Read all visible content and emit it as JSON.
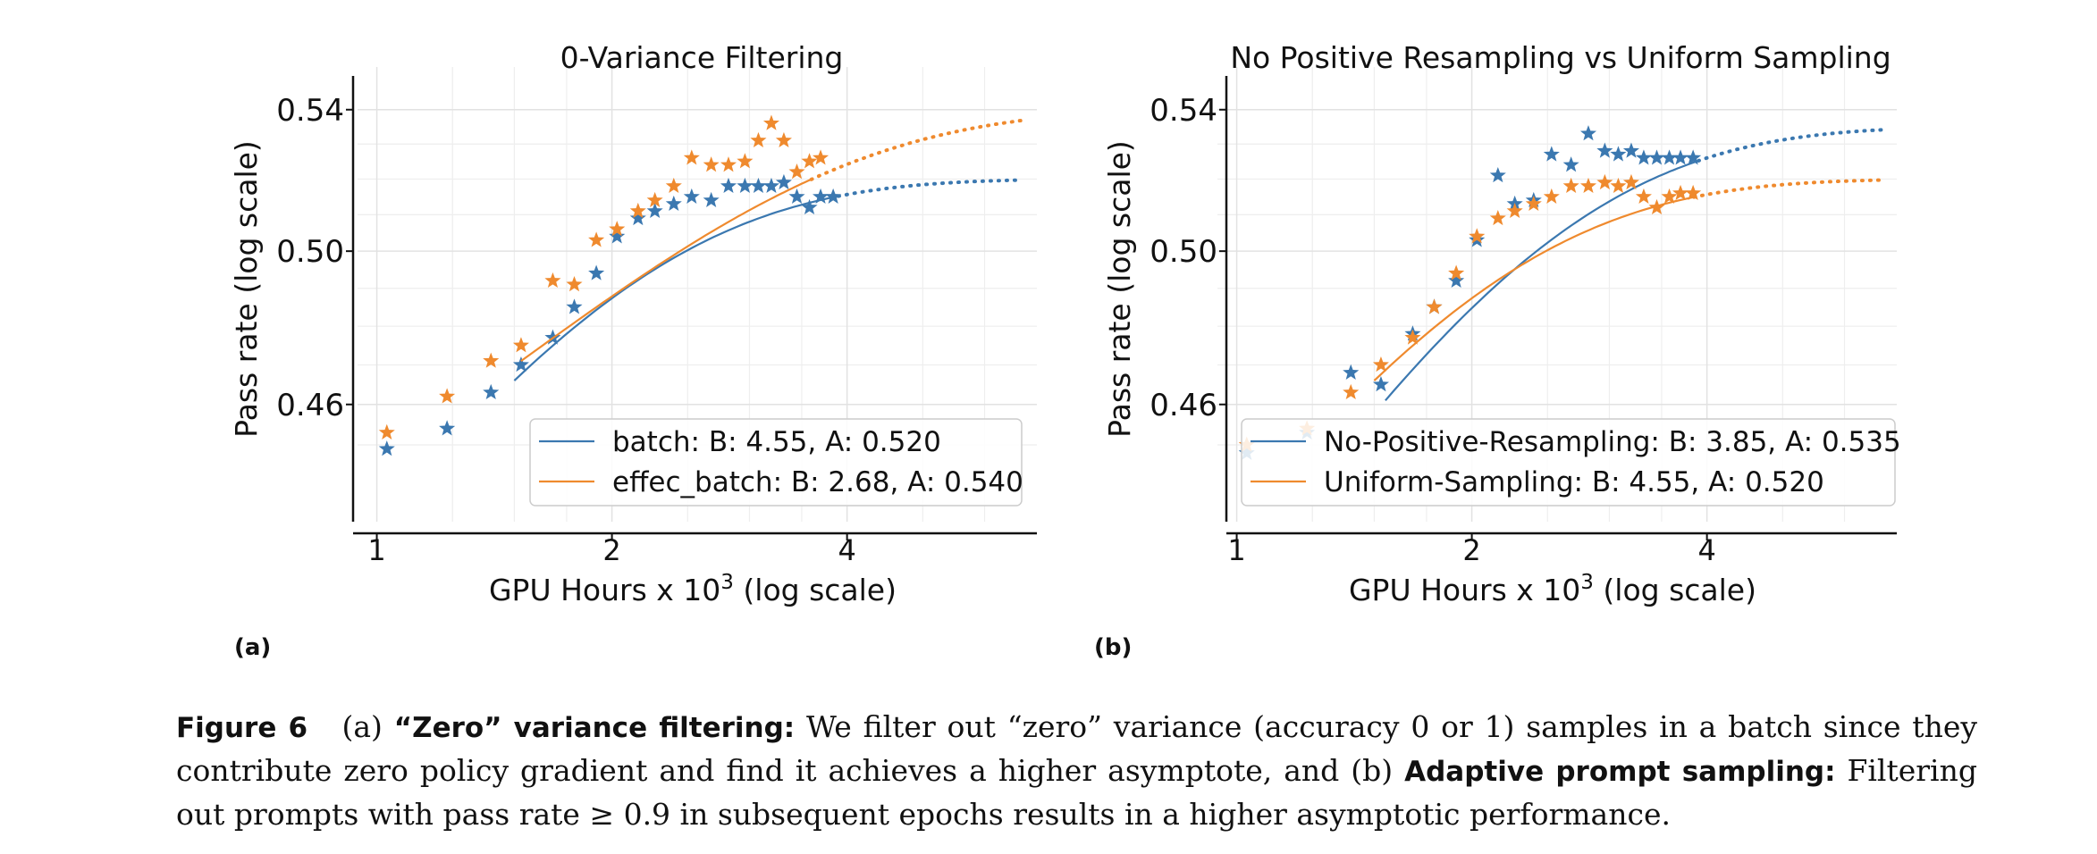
{
  "chart_data": [
    {
      "type": "scatter",
      "title": "0-Variance Filtering",
      "xlabel": "GPU Hours x 10",
      "xlabel_sup": "3",
      "xlabel_suffix": " (log scale)",
      "ylabel": "Pass rate (log scale)",
      "x_scale": "log",
      "y_scale": "log",
      "xlim": [
        0.97,
        7.0
      ],
      "ylim": [
        0.432,
        0.55
      ],
      "x_ticks": [
        1,
        2,
        4
      ],
      "x_tick_labels": [
        "1",
        "2",
        "4"
      ],
      "y_ticks": [
        0.46,
        0.5,
        0.54
      ],
      "y_tick_labels": [
        "0.46",
        "0.50",
        "0.54"
      ],
      "grid": true,
      "legend_position": "lower-right",
      "series": [
        {
          "name": "batch",
          "legend": "batch: B: 4.55, A: 0.520",
          "color": "#3b78b0",
          "B": 4.55,
          "A": 0.52,
          "fit_x_range": [
            1.5,
            3.9
          ],
          "extrapolation_x_range": [
            3.9,
            6.7
          ],
          "points_x": [
            1.03,
            1.23,
            1.4,
            1.53,
            1.68,
            1.79,
            1.91,
            2.03,
            2.16,
            2.27,
            2.4,
            2.53,
            2.68,
            2.82,
            2.96,
            3.08,
            3.2,
            3.32,
            3.45,
            3.58,
            3.7,
            3.84
          ],
          "points_y": [
            0.449,
            0.454,
            0.463,
            0.47,
            0.477,
            0.485,
            0.494,
            0.504,
            0.509,
            0.511,
            0.513,
            0.515,
            0.514,
            0.518,
            0.518,
            0.518,
            0.518,
            0.519,
            0.515,
            0.512,
            0.515,
            0.515
          ]
        },
        {
          "name": "effec_batch",
          "legend": "effec_batch: B: 2.68, A: 0.540",
          "color": "#ef8a2e",
          "B": 2.68,
          "A": 0.54,
          "fit_x_range": [
            1.53,
            3.6
          ],
          "extrapolation_x_range": [
            3.6,
            6.7
          ],
          "points_x": [
            1.03,
            1.23,
            1.4,
            1.53,
            1.68,
            1.79,
            1.91,
            2.03,
            2.16,
            2.27,
            2.4,
            2.53,
            2.68,
            2.82,
            2.96,
            3.08,
            3.2,
            3.32,
            3.45,
            3.58,
            3.7
          ],
          "points_y": [
            0.453,
            0.462,
            0.471,
            0.475,
            0.492,
            0.491,
            0.503,
            0.506,
            0.511,
            0.514,
            0.518,
            0.526,
            0.524,
            0.524,
            0.525,
            0.531,
            0.536,
            0.531,
            0.522,
            0.525,
            0.526
          ]
        }
      ]
    },
    {
      "type": "scatter",
      "title": "No Positive Resampling vs Uniform Sampling",
      "xlabel": "GPU Hours x 10",
      "xlabel_sup": "3",
      "xlabel_suffix": " (log scale)",
      "ylabel": "Pass rate (log scale)",
      "x_scale": "log",
      "y_scale": "log",
      "xlim": [
        0.97,
        7.0
      ],
      "ylim": [
        0.432,
        0.55
      ],
      "x_ticks": [
        1,
        2,
        4
      ],
      "x_tick_labels": [
        "1",
        "2",
        "4"
      ],
      "y_ticks": [
        0.46,
        0.5,
        0.54
      ],
      "y_tick_labels": [
        "0.46",
        "0.50",
        "0.54"
      ],
      "grid": true,
      "legend_position": "lower-right",
      "series": [
        {
          "name": "No-Positive-Resampling",
          "legend": "No-Positive-Resampling: B: 3.85, A: 0.535",
          "color": "#3b78b0",
          "B": 3.85,
          "A": 0.535,
          "fit_x_range": [
            1.55,
            3.9
          ],
          "extrapolation_x_range": [
            3.9,
            6.7
          ],
          "points_x": [
            1.03,
            1.23,
            1.4,
            1.53,
            1.68,
            1.79,
            1.91,
            2.03,
            2.16,
            2.27,
            2.4,
            2.53,
            2.68,
            2.82,
            2.96,
            3.08,
            3.2,
            3.32,
            3.45,
            3.58,
            3.7,
            3.84
          ],
          "points_y": [
            0.448,
            0.453,
            0.468,
            0.465,
            0.478,
            0.485,
            0.492,
            0.503,
            0.521,
            0.513,
            0.514,
            0.527,
            0.524,
            0.533,
            0.528,
            0.527,
            0.528,
            0.526,
            0.526,
            0.526,
            0.526,
            0.526
          ]
        },
        {
          "name": "Uniform-Sampling",
          "legend": "Uniform-Sampling: B: 4.55, A: 0.520",
          "color": "#ef8a2e",
          "B": 4.55,
          "A": 0.52,
          "fit_x_range": [
            1.5,
            3.85
          ],
          "extrapolation_x_range": [
            3.85,
            6.7
          ],
          "points_x": [
            1.03,
            1.23,
            1.4,
            1.53,
            1.68,
            1.79,
            1.91,
            2.03,
            2.16,
            2.27,
            2.4,
            2.53,
            2.68,
            2.82,
            2.96,
            3.08,
            3.2,
            3.32,
            3.45,
            3.58,
            3.7,
            3.84
          ],
          "points_y": [
            0.45,
            0.454,
            0.463,
            0.47,
            0.477,
            0.485,
            0.494,
            0.504,
            0.509,
            0.511,
            0.513,
            0.515,
            0.518,
            0.518,
            0.519,
            0.518,
            0.519,
            0.515,
            0.512,
            0.515,
            0.516,
            0.516
          ]
        }
      ]
    }
  ],
  "panels": {
    "a_label": "(a)",
    "b_label": "(b)"
  },
  "caption": {
    "figure_label": "Figure 6",
    "part_a_prefix": "(a)",
    "part_a_title": "“Zero” variance filtering:",
    "part_a_text": "We filter out “zero” variance (accuracy 0 or 1) samples in a batch since they contribute zero policy gradient and find it achieves a higher asymptote, and",
    "part_b_prefix": "(b)",
    "part_b_title": "Adaptive prompt sampling:",
    "part_b_text": "Filtering out prompts with pass rate ≥ 0.9 in subsequent epochs results in a higher asymptotic performance."
  }
}
